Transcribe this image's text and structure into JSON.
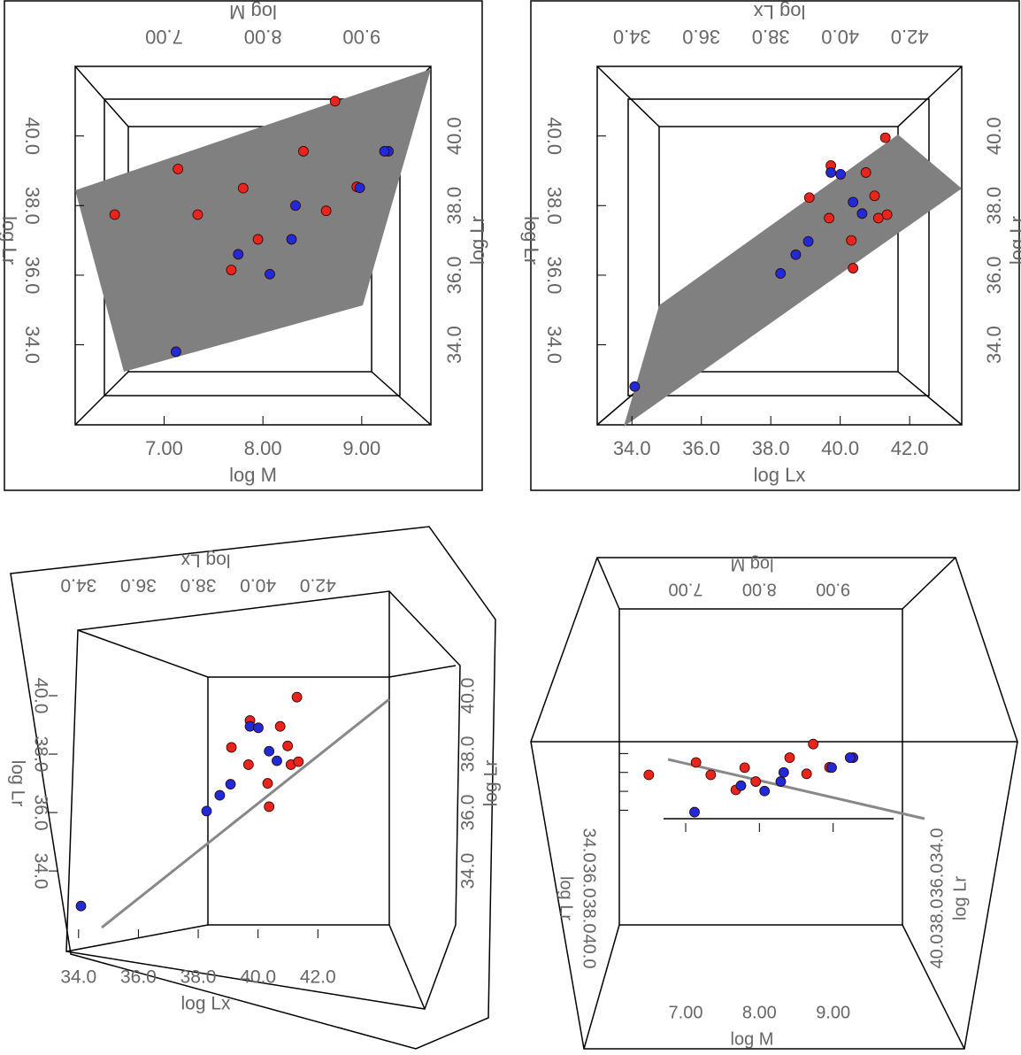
{
  "chart_data": [
    {
      "type": "scatter3d",
      "x_label": "log M",
      "y_label": "log Lr",
      "xlim": [
        6.1,
        9.7
      ],
      "ylim": [
        31.7,
        42
      ],
      "xticks": [
        {
          "value": 7,
          "label": "7.00"
        },
        {
          "value": 8,
          "label": "8.00"
        },
        {
          "value": 9,
          "label": "9.00"
        }
      ],
      "yticks": [
        {
          "value": 34,
          "label": "34.0"
        },
        {
          "value": 36,
          "label": "36.0"
        },
        {
          "value": 38,
          "label": "38.0"
        },
        {
          "value": 40,
          "label": "40.0"
        }
      ],
      "series": [
        {
          "color": "#e8251c",
          "x": [
            8.73,
            7.14,
            7.8,
            8.41,
            7.34,
            6.5,
            8.64,
            7.95,
            7.68,
            8.95
          ],
          "values": [
            41.0,
            39.05,
            38.5,
            39.56,
            37.74,
            37.74,
            37.85,
            37.03,
            36.15,
            38.54
          ]
        },
        {
          "color": "#1f2bd6",
          "x": [
            9.27,
            9.23,
            8.98,
            8.33,
            8.29,
            7.75,
            8.07,
            7.12
          ],
          "values": [
            39.56,
            39.56,
            38.51,
            38.0,
            37.03,
            36.6,
            36.03,
            33.8
          ]
        }
      ]
    },
    {
      "type": "scatter3d",
      "x_label": "log Lx",
      "y_label": "log Lr",
      "xlim": [
        33,
        43.5
      ],
      "ylim": [
        31.7,
        42
      ],
      "xticks": [
        {
          "value": 34,
          "label": "34.0"
        },
        {
          "value": 36,
          "label": "36.0"
        },
        {
          "value": 38,
          "label": "38.0"
        },
        {
          "value": 40,
          "label": "40.0"
        },
        {
          "value": 42,
          "label": "42.0"
        }
      ],
      "yticks": [
        {
          "value": 34,
          "label": "34.0"
        },
        {
          "value": 36,
          "label": "36.0"
        },
        {
          "value": 38,
          "label": "38.0"
        },
        {
          "value": 40,
          "label": "40.0"
        }
      ],
      "series": [
        {
          "color": "#e8251c",
          "x": [
            41.3,
            39.73,
            39.11,
            40.74,
            40.99,
            39.68,
            41.1,
            41.35,
            40.32,
            40.37
          ],
          "values": [
            39.95,
            39.15,
            38.23,
            38.95,
            38.28,
            37.64,
            37.64,
            37.74,
            37.0,
            36.2
          ]
        },
        {
          "color": "#1f2bd6",
          "x": [
            39.73,
            40.01,
            40.37,
            40.63,
            39.08,
            38.72,
            38.28,
            34.08
          ],
          "values": [
            38.95,
            38.9,
            38.1,
            37.77,
            36.97,
            36.59,
            36.05,
            32.8
          ]
        }
      ]
    }
  ]
}
